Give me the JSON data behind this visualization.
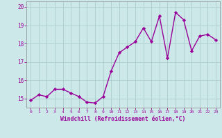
{
  "x": [
    0,
    1,
    2,
    3,
    4,
    5,
    6,
    7,
    8,
    9,
    10,
    11,
    12,
    13,
    14,
    15,
    16,
    17,
    18,
    19,
    20,
    21,
    22,
    23
  ],
  "y": [
    14.9,
    15.2,
    15.1,
    15.5,
    15.5,
    15.3,
    15.1,
    14.8,
    14.75,
    15.1,
    16.5,
    17.5,
    17.8,
    18.1,
    18.85,
    18.1,
    19.5,
    17.2,
    19.7,
    19.3,
    17.6,
    18.4,
    18.5,
    18.2
  ],
  "line_color": "#990099",
  "marker": "D",
  "markersize": 2.2,
  "linewidth": 1.0,
  "bg_color": "#cce8e8",
  "grid_color": "#aacccc",
  "xlabel": "Windchill (Refroidissement éolien,°C)",
  "xlabel_color": "#990099",
  "tick_color": "#990099",
  "ylim": [
    14.5,
    20.3
  ],
  "yticks": [
    15,
    16,
    17,
    18,
    19,
    20
  ],
  "xticks": [
    0,
    1,
    2,
    3,
    4,
    5,
    6,
    7,
    8,
    9,
    10,
    11,
    12,
    13,
    14,
    15,
    16,
    17,
    18,
    19,
    20,
    21,
    22,
    23
  ]
}
